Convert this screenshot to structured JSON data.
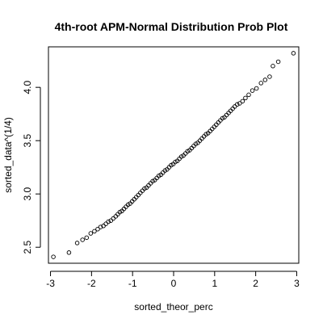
{
  "chart_data": {
    "type": "scatter",
    "title": "4th-root APM-Normal Distribution Prob Plot",
    "xlabel": "sorted_theor_perc",
    "ylabel": "sorted_data^(1/4)",
    "xlim": [
      -3.05,
      3.05
    ],
    "ylim": [
      2.35,
      4.38
    ],
    "x_ticks": [
      -3,
      -2,
      -1,
      0,
      1,
      2,
      3
    ],
    "x_tick_labels": [
      "-3",
      "-2",
      "-1",
      "0",
      "1",
      "2",
      "3"
    ],
    "y_ticks": [
      2.5,
      3.0,
      3.5,
      4.0
    ],
    "y_tick_labels": [
      "2.5",
      "3.0",
      "3.5",
      "4.0"
    ],
    "grid": false,
    "legend": "none",
    "marker": "open-circle",
    "series": [
      {
        "points": [
          [
            -2.93,
            2.41
          ],
          [
            -2.55,
            2.45
          ],
          [
            -2.35,
            2.54
          ],
          [
            -2.22,
            2.57
          ],
          [
            -2.12,
            2.59
          ],
          [
            -2.02,
            2.63
          ],
          [
            -1.93,
            2.65
          ],
          [
            -1.85,
            2.67
          ],
          [
            -1.78,
            2.69
          ],
          [
            -1.71,
            2.7
          ],
          [
            -1.65,
            2.72
          ],
          [
            -1.59,
            2.74
          ],
          [
            -1.53,
            2.75
          ],
          [
            -1.47,
            2.77
          ],
          [
            -1.41,
            2.79
          ],
          [
            -1.36,
            2.81
          ],
          [
            -1.31,
            2.83
          ],
          [
            -1.26,
            2.84
          ],
          [
            -1.21,
            2.86
          ],
          [
            -1.16,
            2.88
          ],
          [
            -1.11,
            2.9
          ],
          [
            -1.06,
            2.91
          ],
          [
            -1.01,
            2.93
          ],
          [
            -0.96,
            2.95
          ],
          [
            -0.91,
            2.97
          ],
          [
            -0.86,
            2.99
          ],
          [
            -0.81,
            3.01
          ],
          [
            -0.76,
            3.03
          ],
          [
            -0.71,
            3.05
          ],
          [
            -0.66,
            3.06
          ],
          [
            -0.61,
            3.08
          ],
          [
            -0.56,
            3.1
          ],
          [
            -0.51,
            3.12
          ],
          [
            -0.46,
            3.13
          ],
          [
            -0.41,
            3.15
          ],
          [
            -0.36,
            3.17
          ],
          [
            -0.31,
            3.18
          ],
          [
            -0.26,
            3.2
          ],
          [
            -0.21,
            3.22
          ],
          [
            -0.16,
            3.23
          ],
          [
            -0.11,
            3.25
          ],
          [
            -0.06,
            3.27
          ],
          [
            -0.01,
            3.28
          ],
          [
            0.04,
            3.3
          ],
          [
            0.09,
            3.31
          ],
          [
            0.14,
            3.33
          ],
          [
            0.19,
            3.35
          ],
          [
            0.24,
            3.36
          ],
          [
            0.29,
            3.38
          ],
          [
            0.34,
            3.4
          ],
          [
            0.39,
            3.41
          ],
          [
            0.44,
            3.43
          ],
          [
            0.49,
            3.45
          ],
          [
            0.54,
            3.47
          ],
          [
            0.59,
            3.48
          ],
          [
            0.64,
            3.5
          ],
          [
            0.69,
            3.52
          ],
          [
            0.74,
            3.54
          ],
          [
            0.79,
            3.56
          ],
          [
            0.84,
            3.57
          ],
          [
            0.89,
            3.59
          ],
          [
            0.94,
            3.61
          ],
          [
            0.99,
            3.63
          ],
          [
            1.04,
            3.65
          ],
          [
            1.09,
            3.67
          ],
          [
            1.14,
            3.69
          ],
          [
            1.19,
            3.71
          ],
          [
            1.24,
            3.72
          ],
          [
            1.29,
            3.74
          ],
          [
            1.34,
            3.76
          ],
          [
            1.39,
            3.78
          ],
          [
            1.44,
            3.8
          ],
          [
            1.49,
            3.82
          ],
          [
            1.55,
            3.84
          ],
          [
            1.61,
            3.85
          ],
          [
            1.68,
            3.87
          ],
          [
            1.75,
            3.9
          ],
          [
            1.83,
            3.93
          ],
          [
            1.92,
            3.97
          ],
          [
            2.02,
            3.99
          ],
          [
            2.13,
            4.04
          ],
          [
            2.23,
            4.07
          ],
          [
            2.34,
            4.1
          ],
          [
            2.42,
            4.2
          ],
          [
            2.55,
            4.24
          ],
          [
            2.92,
            4.32
          ]
        ]
      }
    ]
  }
}
